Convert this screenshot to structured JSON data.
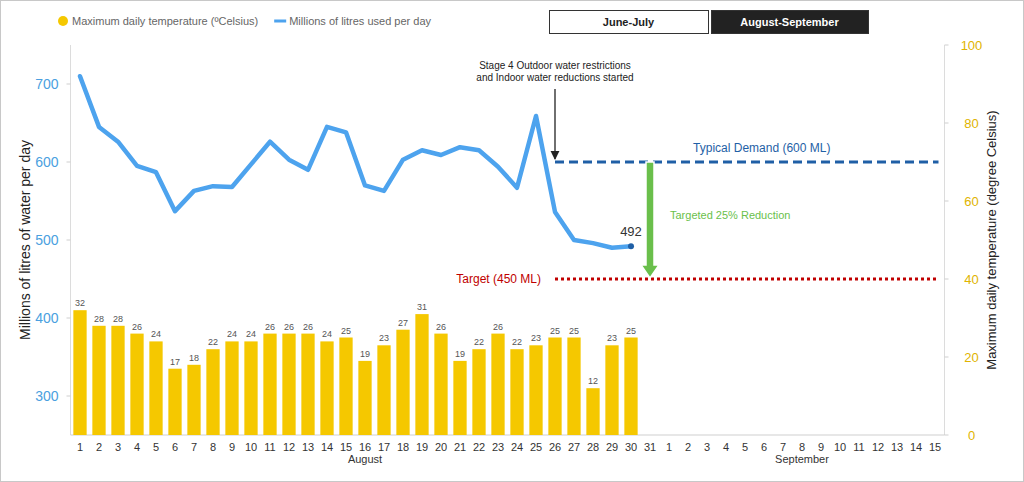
{
  "controls": {
    "buttons": [
      {
        "label": "June-July",
        "active": false
      },
      {
        "label": "August-September",
        "active": true
      }
    ]
  },
  "chart_data": {
    "type": "combo",
    "categories": [
      "1",
      "2",
      "3",
      "4",
      "5",
      "6",
      "7",
      "8",
      "9",
      "10",
      "11",
      "12",
      "13",
      "14",
      "15",
      "16",
      "17",
      "18",
      "19",
      "20",
      "21",
      "22",
      "23",
      "24",
      "25",
      "26",
      "27",
      "28",
      "29",
      "30",
      "31",
      "1",
      "2",
      "3",
      "4",
      "5",
      "6",
      "7",
      "8",
      "9",
      "10",
      "11",
      "12",
      "13",
      "14",
      "15"
    ],
    "x_groups": [
      "August",
      "September"
    ],
    "ylabel": "Millions of litres of water per day",
    "y2label": "Maximum daily temperature (degree Celsius)",
    "ylim": [
      250,
      750
    ],
    "yticks": [
      300,
      400,
      500,
      600,
      700
    ],
    "y2lim": [
      0,
      100
    ],
    "y2ticks": [
      0,
      20,
      40,
      60,
      80,
      100
    ],
    "legend": "top-left",
    "grid": false,
    "series": [
      {
        "name": "Maximum daily temperature (ºCelsius)",
        "type": "bar",
        "axis": "y2",
        "color": "#f5c800",
        "data_labels": true,
        "values": [
          32,
          28,
          28,
          26,
          24,
          17,
          18,
          22,
          24,
          24,
          26,
          26,
          26,
          24,
          25,
          19,
          23,
          27,
          31,
          26,
          19,
          22,
          26,
          22,
          23,
          25,
          25,
          12,
          23,
          25,
          null,
          null,
          null,
          null,
          null,
          null,
          null,
          null,
          null,
          null,
          null,
          null,
          null,
          null,
          null,
          null
        ]
      },
      {
        "name": "Millions of litres used per day",
        "type": "line",
        "color": "#4da3ee",
        "values": [
          710,
          645,
          626,
          595,
          587,
          537,
          563,
          569,
          568,
          597,
          626,
          603,
          590,
          645,
          638,
          570,
          563,
          603,
          615,
          609,
          619,
          615,
          594,
          567,
          659,
          536,
          500,
          496,
          490,
          492,
          null,
          null,
          null,
          null,
          null,
          null,
          null,
          null,
          null,
          null,
          null,
          null,
          null,
          null,
          null,
          null
        ],
        "value_labels": [
          null,
          null,
          null,
          null,
          null,
          null,
          null,
          null,
          null,
          null,
          null,
          null,
          null,
          null,
          null,
          null,
          null,
          null,
          null,
          null,
          null,
          null,
          null,
          null,
          null,
          null,
          null,
          null,
          null,
          "492",
          null,
          null,
          null,
          null,
          null,
          null,
          null,
          null,
          null,
          null,
          null,
          null,
          null,
          null,
          null,
          null
        ]
      }
    ],
    "reference_lines": [
      {
        "label": "Typical Demand (600 ML)",
        "value": 600,
        "x_start": 25,
        "color": "#1f5fa6",
        "line_style": "dashed"
      },
      {
        "label": "Target (450 ML)",
        "value": 450,
        "x_start": 25,
        "color": "#c00000",
        "line_style": "dotted"
      }
    ],
    "annotations": [
      {
        "text": [
          "Stage 4 Outdoor water restrictions",
          "and Indoor water reductions started"
        ],
        "x": 25,
        "y": 600
      },
      {
        "text": "Targeted 25% Reduction",
        "x": 30,
        "from": 600,
        "to": 450,
        "color": "#6abf4b"
      }
    ]
  }
}
